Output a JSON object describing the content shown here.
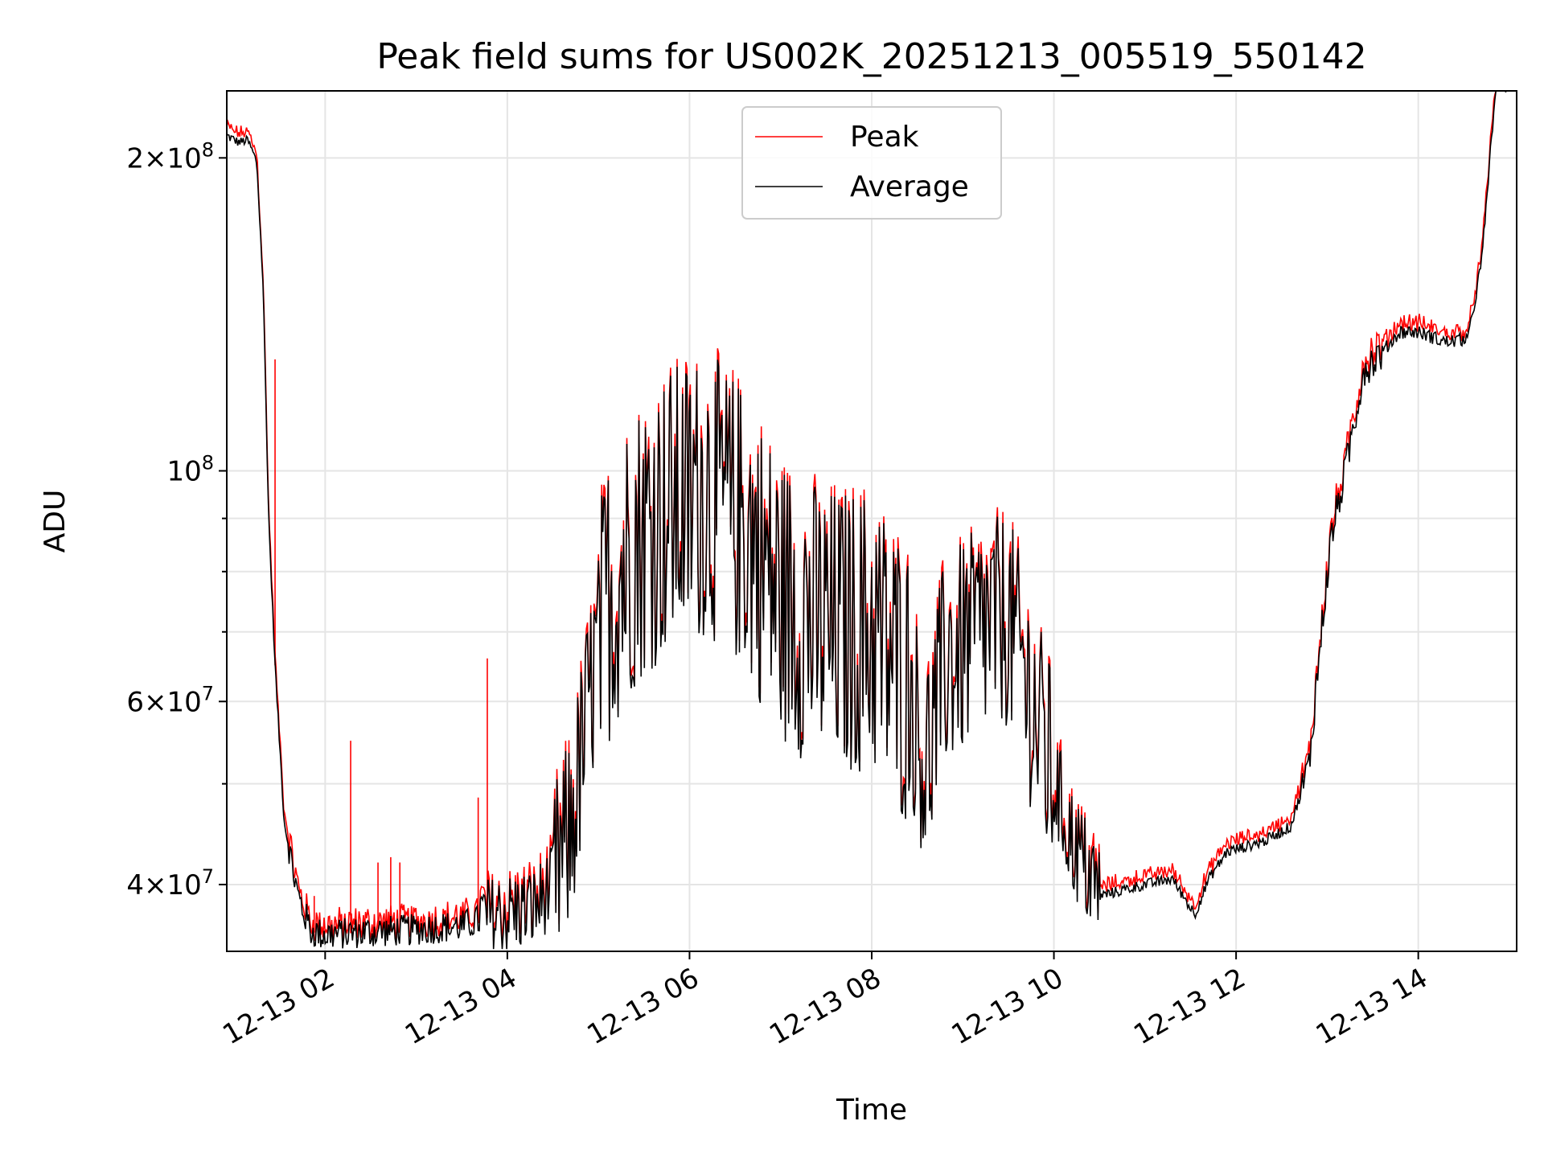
{
  "chart_data": {
    "type": "line",
    "title": "Peak field sums for US002K_20251213_005519_550142",
    "xlabel": "Time",
    "ylabel": "ADU",
    "yscale": "log",
    "ylim": [
      34500000,
      232000000
    ],
    "xlim_hours": [
      0.92,
      15.08
    ],
    "grid": true,
    "legend_position": "upper-center",
    "x_ticks": [
      {
        "hour": 2,
        "label": "12-13 02"
      },
      {
        "hour": 4,
        "label": "12-13 04"
      },
      {
        "hour": 6,
        "label": "12-13 06"
      },
      {
        "hour": 8,
        "label": "12-13 08"
      },
      {
        "hour": 10,
        "label": "12-13 10"
      },
      {
        "hour": 12,
        "label": "12-13 12"
      },
      {
        "hour": 14,
        "label": "12-13 14"
      }
    ],
    "y_major_ticks": [
      {
        "value": 40000000,
        "mant": "4",
        "exp": "7"
      },
      {
        "value": 60000000,
        "mant": "6",
        "exp": "7"
      },
      {
        "value": 100000000,
        "mant": "",
        "exp": "8"
      },
      {
        "value": 200000000,
        "mant": "2",
        "exp": "8"
      }
    ],
    "y_minor_ticks": [
      50000000,
      70000000,
      80000000,
      90000000
    ],
    "series": [
      {
        "name": "Peak",
        "color": "#ff0000",
        "spikes": [
          {
            "hour": 1.45,
            "value": 128000000
          },
          {
            "hour": 1.88,
            "value": 39000000
          },
          {
            "hour": 2.12,
            "value": 37000000
          },
          {
            "hour": 2.28,
            "value": 55000000
          },
          {
            "hour": 2.58,
            "value": 42000000
          },
          {
            "hour": 2.72,
            "value": 42500000
          },
          {
            "hour": 2.82,
            "value": 42000000
          },
          {
            "hour": 3.68,
            "value": 48500000
          },
          {
            "hour": 3.78,
            "value": 66000000
          }
        ]
      },
      {
        "name": "Average",
        "color": "#000000",
        "anchors": [
          [
            0.92,
            210000000
          ],
          [
            1.05,
            207000000
          ],
          [
            1.15,
            208000000
          ],
          [
            1.25,
            198000000
          ],
          [
            1.32,
            150000000
          ],
          [
            1.38,
            90000000
          ],
          [
            1.45,
            65000000
          ],
          [
            1.55,
            46000000
          ],
          [
            1.7,
            39000000
          ],
          [
            1.85,
            36000000
          ],
          [
            2.0,
            35800000
          ],
          [
            2.5,
            36000000
          ],
          [
            3.0,
            36200000
          ],
          [
            3.5,
            36500000
          ],
          [
            3.8,
            37200000
          ],
          [
            4.0,
            37500000
          ],
          [
            4.3,
            38000000
          ],
          [
            4.5,
            40000000
          ],
          [
            4.7,
            45000000
          ],
          [
            4.9,
            60000000
          ],
          [
            5.1,
            75000000
          ],
          [
            5.4,
            85000000
          ],
          [
            5.8,
            92000000
          ],
          [
            6.2,
            95000000
          ],
          [
            6.6,
            88000000
          ],
          [
            7.0,
            75000000
          ],
          [
            7.5,
            70000000
          ],
          [
            8.0,
            70000000
          ],
          [
            8.4,
            62000000
          ],
          [
            8.6,
            52000000
          ],
          [
            8.8,
            65000000
          ],
          [
            9.2,
            70000000
          ],
          [
            9.5,
            72000000
          ],
          [
            9.7,
            62000000
          ],
          [
            9.95,
            52000000
          ],
          [
            10.2,
            44000000
          ],
          [
            10.5,
            39000000
          ],
          [
            11.0,
            40000000
          ],
          [
            11.3,
            40500000
          ],
          [
            11.5,
            38000000
          ],
          [
            11.55,
            37500000
          ],
          [
            11.7,
            40500000
          ],
          [
            11.9,
            43000000
          ],
          [
            12.3,
            44000000
          ],
          [
            12.6,
            45500000
          ],
          [
            12.8,
            52000000
          ],
          [
            12.95,
            72000000
          ],
          [
            13.05,
            87000000
          ],
          [
            13.2,
            100000000
          ],
          [
            13.4,
            125000000
          ],
          [
            13.6,
            130000000
          ],
          [
            13.8,
            136000000
          ],
          [
            14.0,
            136000000
          ],
          [
            14.3,
            133000000
          ],
          [
            14.55,
            134000000
          ],
          [
            14.7,
            160000000
          ],
          [
            14.85,
            235000000
          ]
        ]
      }
    ]
  }
}
